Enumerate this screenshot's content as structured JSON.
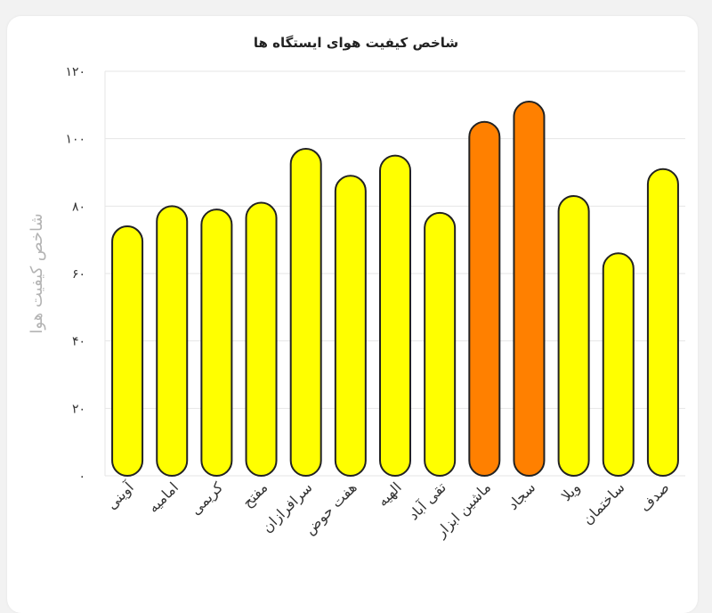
{
  "chart_data": {
    "type": "bar",
    "title": "شاخص کیفیت هوای ایستگاه ها",
    "ylabel": "شاخص کیفیت هوا",
    "xlabel": "",
    "ylim": [
      0,
      120
    ],
    "yticks": [
      0,
      20,
      40,
      60,
      80,
      100,
      120
    ],
    "ytick_labels": [
      "۰",
      "۲۰",
      "۴۰",
      "۶۰",
      "۸۰",
      "۱۰۰",
      "۱۲۰"
    ],
    "grid": true,
    "categories": [
      "آوینی",
      "امامیه",
      "کریمی",
      "مفتح",
      "سرافرازان",
      "هفت حوض",
      "الهیه",
      "تقی آباد",
      "ماشین ابزار",
      "سجاد",
      "ویلا",
      "ساختمان",
      "صدف"
    ],
    "values": [
      74,
      80,
      79,
      81,
      97,
      89,
      95,
      78,
      105,
      111,
      83,
      66,
      91
    ],
    "colors": [
      "#ffff00",
      "#ffff00",
      "#ffff00",
      "#ffff00",
      "#ffff00",
      "#ffff00",
      "#ffff00",
      "#ffff00",
      "#ff8000",
      "#ff8000",
      "#ffff00",
      "#ffff00",
      "#ffff00"
    ]
  }
}
